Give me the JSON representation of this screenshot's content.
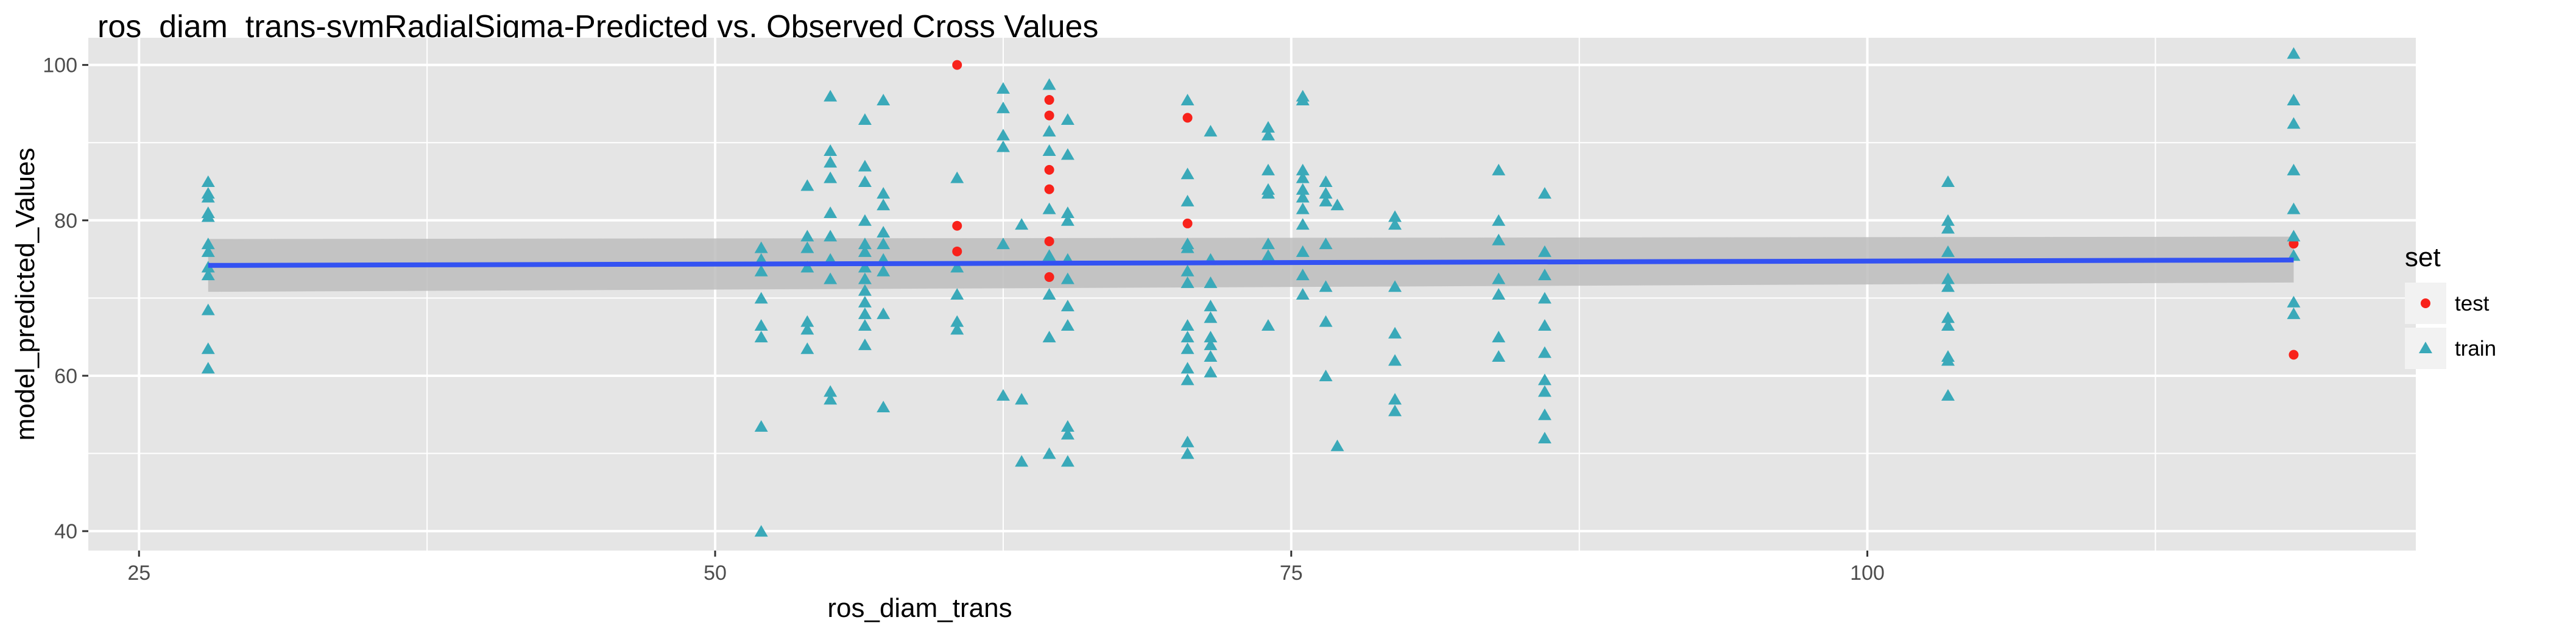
{
  "title": "ros_diam_trans-svmRadialSigma-Predicted vs. Observed Cross Values",
  "colors": {
    "panel_bg": "#e5e5e5",
    "grid": "#ffffff",
    "test": "#f8221b",
    "train": "#3aa9b9",
    "fit_line": "#3352f2",
    "confidence_band": "#bdbdbd"
  },
  "chart_data": {
    "type": "scatter",
    "title": "ros_diam_trans-svmRadialSigma-Predicted vs. Observed Cross Values",
    "xlabel": "ros_diam_trans",
    "ylabel": "model_predicted_Values",
    "xlim": [
      22.8,
      123.8
    ],
    "ylim": [
      37.5,
      103.5
    ],
    "x_ticks": [
      25,
      50,
      75,
      100
    ],
    "y_ticks": [
      40,
      60,
      80,
      100
    ],
    "grid": true,
    "legend": {
      "title": "set",
      "placement": "right",
      "entries": [
        {
          "label": "test",
          "shape": "circle"
        },
        {
          "label": "train",
          "shape": "triangle"
        }
      ]
    },
    "smooth": {
      "method": "linear",
      "x": [
        28,
        118.5
      ],
      "y": [
        74.2,
        74.9
      ],
      "band_lower": [
        70.8,
        72.0
      ],
      "band_upper": [
        77.6,
        77.9
      ]
    },
    "series": [
      {
        "name": "test",
        "shape": "circle",
        "points": [
          [
            60.5,
            100
          ],
          [
            60.5,
            79.3
          ],
          [
            60.5,
            76
          ],
          [
            64.5,
            95.5
          ],
          [
            64.5,
            93.5
          ],
          [
            64.5,
            86.5
          ],
          [
            64.5,
            84
          ],
          [
            64.5,
            77.3
          ],
          [
            64.5,
            72.7
          ],
          [
            70.5,
            93.2
          ],
          [
            70.5,
            79.6
          ],
          [
            118.5,
            77
          ],
          [
            118.5,
            62.7
          ]
        ]
      },
      {
        "name": "train",
        "shape": "triangle",
        "points": [
          [
            28,
            85
          ],
          [
            28,
            83.5
          ],
          [
            28,
            83
          ],
          [
            28,
            81
          ],
          [
            28,
            80.5
          ],
          [
            28,
            77
          ],
          [
            28,
            76
          ],
          [
            28,
            74
          ],
          [
            28,
            73
          ],
          [
            28,
            68.5
          ],
          [
            28,
            63.5
          ],
          [
            28,
            61
          ],
          [
            52,
            76.5
          ],
          [
            52,
            75
          ],
          [
            52,
            73.5
          ],
          [
            52,
            70
          ],
          [
            52,
            66.5
          ],
          [
            52,
            65
          ],
          [
            52,
            53.5
          ],
          [
            52,
            40
          ],
          [
            54,
            84.5
          ],
          [
            54,
            78
          ],
          [
            54,
            76.5
          ],
          [
            54,
            74
          ],
          [
            54,
            67
          ],
          [
            54,
            66
          ],
          [
            54,
            63.5
          ],
          [
            55,
            96
          ],
          [
            55,
            89
          ],
          [
            55,
            87.5
          ],
          [
            55,
            85.5
          ],
          [
            55,
            81
          ],
          [
            55,
            78
          ],
          [
            55,
            75
          ],
          [
            55,
            72.5
          ],
          [
            55,
            58
          ],
          [
            55,
            57
          ],
          [
            56.5,
            93
          ],
          [
            56.5,
            87
          ],
          [
            56.5,
            85
          ],
          [
            56.5,
            80
          ],
          [
            56.5,
            77
          ],
          [
            56.5,
            76
          ],
          [
            56.5,
            74
          ],
          [
            56.5,
            72.5
          ],
          [
            56.5,
            71
          ],
          [
            56.5,
            69.5
          ],
          [
            56.5,
            68
          ],
          [
            56.5,
            66.5
          ],
          [
            56.5,
            64
          ],
          [
            57.3,
            95.5
          ],
          [
            57.3,
            83.5
          ],
          [
            57.3,
            82
          ],
          [
            57.3,
            78.5
          ],
          [
            57.3,
            77
          ],
          [
            57.3,
            75
          ],
          [
            57.3,
            73.5
          ],
          [
            57.3,
            68
          ],
          [
            57.3,
            56
          ],
          [
            60.5,
            85.5
          ],
          [
            60.5,
            74
          ],
          [
            60.5,
            70.5
          ],
          [
            60.5,
            67
          ],
          [
            60.5,
            66
          ],
          [
            62.5,
            97
          ],
          [
            62.5,
            94.5
          ],
          [
            62.5,
            91
          ],
          [
            62.5,
            89.5
          ],
          [
            62.5,
            77
          ],
          [
            62.5,
            57.5
          ],
          [
            63.3,
            79.5
          ],
          [
            63.3,
            57
          ],
          [
            63.3,
            49
          ],
          [
            64.5,
            97.5
          ],
          [
            64.5,
            91.5
          ],
          [
            64.5,
            89
          ],
          [
            64.5,
            81.5
          ],
          [
            64.5,
            75.5
          ],
          [
            64.5,
            70.5
          ],
          [
            64.5,
            65
          ],
          [
            64.5,
            50
          ],
          [
            65.3,
            93
          ],
          [
            65.3,
            88.5
          ],
          [
            65.3,
            81
          ],
          [
            65.3,
            80
          ],
          [
            65.3,
            75
          ],
          [
            65.3,
            72.5
          ],
          [
            65.3,
            69
          ],
          [
            65.3,
            66.5
          ],
          [
            65.3,
            53.5
          ],
          [
            65.3,
            52.5
          ],
          [
            65.3,
            49
          ],
          [
            70.5,
            95.5
          ],
          [
            70.5,
            86
          ],
          [
            70.5,
            82.5
          ],
          [
            70.5,
            77
          ],
          [
            70.5,
            76.5
          ],
          [
            70.5,
            73.5
          ],
          [
            70.5,
            72
          ],
          [
            70.5,
            66.5
          ],
          [
            70.5,
            65
          ],
          [
            70.5,
            63.5
          ],
          [
            70.5,
            61
          ],
          [
            70.5,
            59.5
          ],
          [
            70.5,
            51.5
          ],
          [
            70.5,
            50
          ],
          [
            71.5,
            91.5
          ],
          [
            71.5,
            75
          ],
          [
            71.5,
            72
          ],
          [
            71.5,
            69
          ],
          [
            71.5,
            67.5
          ],
          [
            71.5,
            65
          ],
          [
            71.5,
            64
          ],
          [
            71.5,
            62.5
          ],
          [
            71.5,
            60.5
          ],
          [
            74,
            92
          ],
          [
            74,
            91
          ],
          [
            74,
            86.5
          ],
          [
            74,
            84
          ],
          [
            74,
            83.5
          ],
          [
            74,
            77
          ],
          [
            74,
            75.5
          ],
          [
            74,
            66.5
          ],
          [
            75.5,
            96
          ],
          [
            75.5,
            95.5
          ],
          [
            75.5,
            86.5
          ],
          [
            75.5,
            85.5
          ],
          [
            75.5,
            84
          ],
          [
            75.5,
            83
          ],
          [
            75.5,
            81.5
          ],
          [
            75.5,
            79.5
          ],
          [
            75.5,
            76
          ],
          [
            75.5,
            73
          ],
          [
            75.5,
            70.5
          ],
          [
            76.5,
            85
          ],
          [
            76.5,
            83.5
          ],
          [
            76.5,
            82.5
          ],
          [
            76.5,
            77
          ],
          [
            76.5,
            71.5
          ],
          [
            76.5,
            67
          ],
          [
            76.5,
            60
          ],
          [
            77,
            82
          ],
          [
            77,
            51
          ],
          [
            79.5,
            80.5
          ],
          [
            79.5,
            79.5
          ],
          [
            79.5,
            71.5
          ],
          [
            79.5,
            65.5
          ],
          [
            79.5,
            62
          ],
          [
            79.5,
            57
          ],
          [
            79.5,
            55.5
          ],
          [
            84,
            86.5
          ],
          [
            84,
            80
          ],
          [
            84,
            77.5
          ],
          [
            84,
            72.5
          ],
          [
            84,
            70.5
          ],
          [
            84,
            65
          ],
          [
            84,
            62.5
          ],
          [
            86,
            83.5
          ],
          [
            86,
            76
          ],
          [
            86,
            73
          ],
          [
            86,
            70
          ],
          [
            86,
            66.5
          ],
          [
            86,
            63
          ],
          [
            86,
            59.5
          ],
          [
            86,
            58
          ],
          [
            86,
            55
          ],
          [
            86,
            52
          ],
          [
            103.5,
            85
          ],
          [
            103.5,
            80
          ],
          [
            103.5,
            79
          ],
          [
            103.5,
            76
          ],
          [
            103.5,
            72.5
          ],
          [
            103.5,
            71.5
          ],
          [
            103.5,
            67.5
          ],
          [
            103.5,
            66.5
          ],
          [
            103.5,
            62.5
          ],
          [
            103.5,
            62
          ],
          [
            103.5,
            57.5
          ],
          [
            118.5,
            101.5
          ],
          [
            118.5,
            95.5
          ],
          [
            118.5,
            92.5
          ],
          [
            118.5,
            86.5
          ],
          [
            118.5,
            81.5
          ],
          [
            118.5,
            78
          ],
          [
            118.5,
            75.5
          ],
          [
            118.5,
            69.5
          ],
          [
            118.5,
            68
          ]
        ]
      }
    ]
  }
}
